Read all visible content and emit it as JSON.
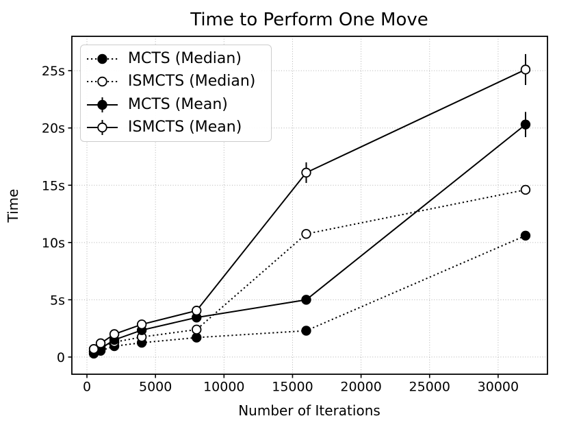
{
  "chart_data": {
    "type": "line",
    "title": "Time to Perform One Move",
    "xlabel": "Number of Iterations",
    "ylabel": "Time",
    "x": [
      500,
      1000,
      2000,
      4000,
      8000,
      16000,
      32000
    ],
    "series": [
      {
        "name": "MCTS (Median)",
        "linestyle": "dotted",
        "marker": "filled-circle",
        "values": [
          0.3,
          0.55,
          0.95,
          1.25,
          1.7,
          2.3,
          10.6
        ]
      },
      {
        "name": "ISMCTS (Median)",
        "linestyle": "dotted",
        "marker": "open-circle",
        "values": [
          0.5,
          0.85,
          1.3,
          1.75,
          2.4,
          10.75,
          14.6
        ]
      },
      {
        "name": "MCTS (Mean)",
        "linestyle": "solid",
        "marker": "filled-circle",
        "values": [
          0.45,
          0.75,
          1.5,
          2.35,
          3.45,
          5.0,
          20.3
        ],
        "yerr": [
          0.05,
          0.05,
          0.1,
          0.1,
          0.15,
          0.3,
          1.1
        ]
      },
      {
        "name": "ISMCTS (Mean)",
        "linestyle": "solid",
        "marker": "open-circle",
        "values": [
          0.7,
          1.2,
          2.0,
          2.85,
          4.05,
          16.1,
          25.1
        ],
        "yerr": [
          0.05,
          0.1,
          0.15,
          0.2,
          0.3,
          0.9,
          1.35
        ]
      }
    ],
    "xticks": [
      0,
      5000,
      10000,
      15000,
      20000,
      25000,
      30000
    ],
    "yticks": [
      0,
      5,
      10,
      15,
      20,
      25
    ],
    "ytick_labels": [
      "0",
      "5s",
      "10s",
      "15s",
      "20s",
      "25s"
    ],
    "xlim": [
      -1100,
      33600
    ],
    "ylim": [
      -1.5,
      28
    ],
    "grid": true,
    "legend_position": "upper-left",
    "colors": {
      "line": "#000000",
      "grid": "#b0b0b0",
      "background": "#ffffff",
      "legend_border": "#cccccc"
    }
  }
}
